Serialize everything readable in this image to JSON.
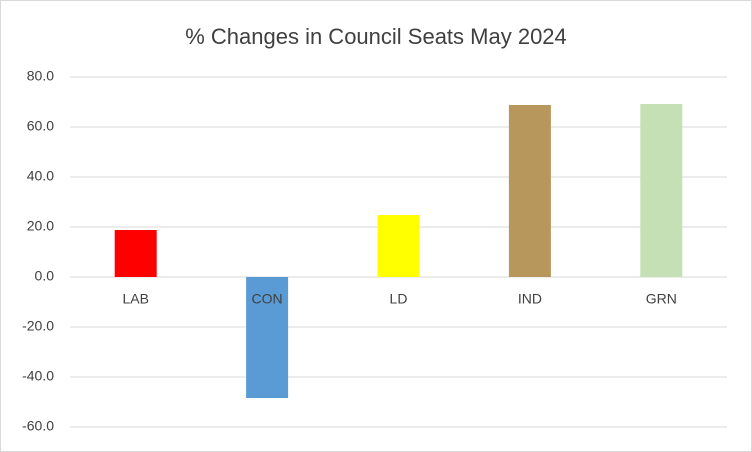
{
  "chart_data": {
    "type": "bar",
    "title": "% Changes in Council Seats May 2024",
    "categories": [
      "LAB",
      "CON",
      "LD",
      "IND",
      "GRN"
    ],
    "values": [
      18.8,
      -48.4,
      24.8,
      68.8,
      69.2
    ],
    "colors": [
      "#ff0000",
      "#5b9bd5",
      "#ffff00",
      "#b8975c",
      "#c5e0b4"
    ],
    "ylim": [
      -60,
      80
    ],
    "yticks": [
      {
        "value": -60,
        "label": "-60.0"
      },
      {
        "value": -40,
        "label": "-40.0"
      },
      {
        "value": -20,
        "label": "-20.0"
      },
      {
        "value": 0,
        "label": "0.0"
      },
      {
        "value": 20,
        "label": "20.0"
      },
      {
        "value": 40,
        "label": "40.0"
      },
      {
        "value": 60,
        "label": "60.0"
      },
      {
        "value": 80,
        "label": "80.0"
      }
    ],
    "grid": true
  }
}
